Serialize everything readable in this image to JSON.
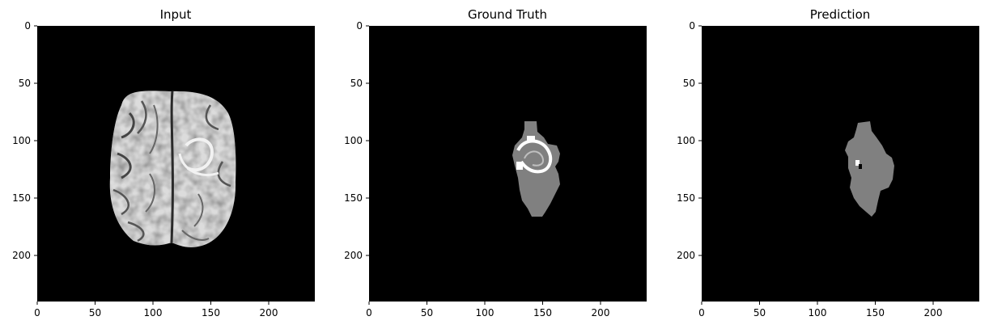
{
  "panels": [
    {
      "title": "Input",
      "kind": "mri",
      "xticks": [
        "0",
        "50",
        "100",
        "150",
        "200"
      ],
      "yticks": [
        "0",
        "50",
        "100",
        "150",
        "200"
      ]
    },
    {
      "title": "Ground Truth",
      "kind": "ground-truth",
      "xticks": [
        "0",
        "50",
        "100",
        "150",
        "200"
      ],
      "yticks": [
        "0",
        "50",
        "100",
        "150",
        "200"
      ]
    },
    {
      "title": "Prediction",
      "kind": "prediction",
      "xticks": [
        "0",
        "50",
        "100",
        "150",
        "200"
      ],
      "yticks": [
        "0",
        "50",
        "100",
        "150",
        "200"
      ]
    }
  ],
  "colors": {
    "background": "#000000",
    "segment-gray": "#808080",
    "segment-white": "#ffffff"
  }
}
